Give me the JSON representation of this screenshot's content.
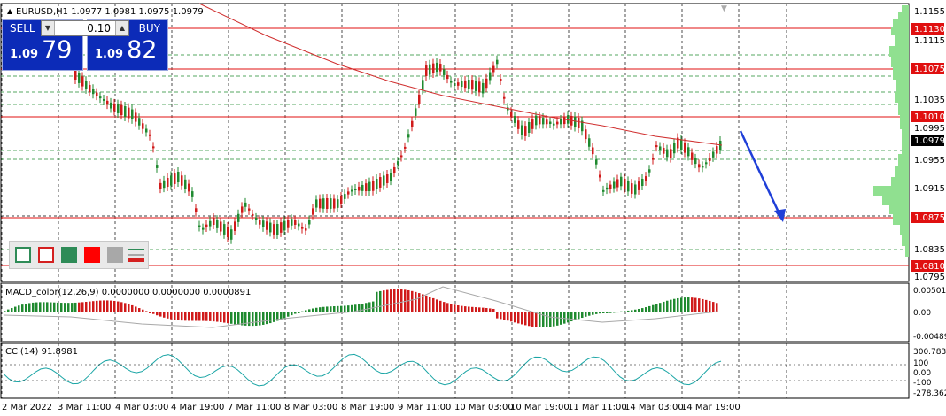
{
  "symbol_header": {
    "text": "EURUSD,H1  1.0977 1.0981 1.0975 1.0979"
  },
  "trade_panel": {
    "sell_label": "SELL",
    "buy_label": "BUY",
    "lot_value": "0.10",
    "sell_prefix": "1.09",
    "sell_big": "79",
    "buy_prefix": "1.09",
    "buy_big": "82"
  },
  "price_axis": {
    "ticks": [
      "1.1155",
      "1.1115",
      "1.1075",
      "1.1035",
      "1.0995",
      "1.0955",
      "1.0915",
      "1.0875",
      "1.0835",
      "1.0795"
    ],
    "highlight_levels": [
      "1.1130",
      "1.1075",
      "1.1010",
      "1.0875",
      "1.0810"
    ],
    "current_price": "1.0979"
  },
  "macd": {
    "label": "MACD_color(12,26,9) 0.0000000 0.0000000 0.0000891",
    "axis": [
      "0.005010",
      "0.00",
      "-0.004893"
    ]
  },
  "cci": {
    "label": "CCI(14) 91.8981",
    "axis": [
      "300.7831",
      "100",
      "0.00",
      "-100",
      "-278.3626"
    ]
  },
  "time_axis": [
    "2 Mar 2022",
    "3 Mar 11:00",
    "4 Mar 03:00",
    "4 Mar 19:00",
    "7 Mar 11:00",
    "8 Mar 03:00",
    "8 Mar 19:00",
    "9 Mar 11:00",
    "10 Mar 03:00",
    "10 Mar 19:00",
    "11 Mar 11:00",
    "14 Mar 03:00",
    "14 Mar 19:00"
  ],
  "colors": {
    "bull": "#1f8a2f",
    "bear": "#d01a1a",
    "level_line": "#e01010",
    "arrow": "#1f3fd8",
    "panel_blue": "#0c2bb8",
    "profile": "#90e090"
  },
  "color_swatches": [
    "#ffffff",
    "#ffffff",
    "#2e8b57",
    "#ff0000",
    "#a8a8a8",
    "#d42020"
  ]
}
